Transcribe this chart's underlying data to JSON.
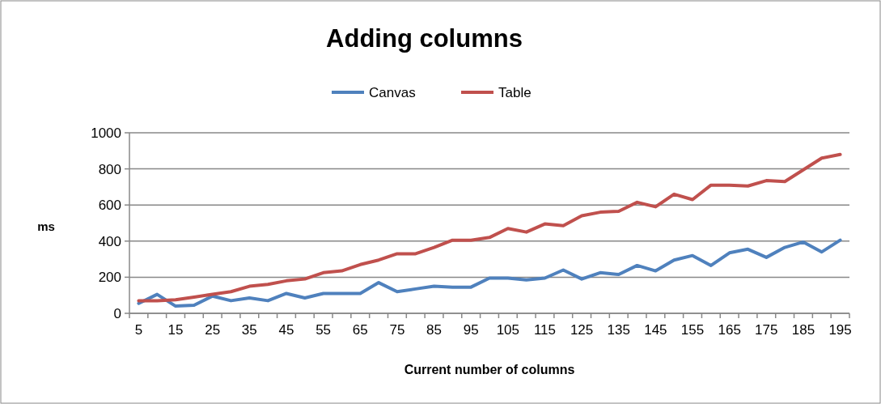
{
  "chart_data": {
    "type": "line",
    "title": "Adding columns",
    "xlabel": "Current number of columns",
    "ylabel": "ms",
    "categories": [
      "5",
      null,
      "15",
      null,
      "25",
      null,
      "35",
      null,
      "45",
      null,
      "55",
      null,
      "65",
      null,
      "75",
      null,
      "85",
      null,
      "95",
      null,
      "105",
      null,
      "115",
      null,
      "125",
      null,
      "135",
      null,
      "145",
      null,
      "155",
      null,
      "165",
      null,
      "175",
      null,
      "185",
      null,
      "195"
    ],
    "series": [
      {
        "name": "Canvas",
        "color": "#4f81bd",
        "values": [
          55,
          105,
          40,
          45,
          95,
          70,
          85,
          70,
          110,
          85,
          110,
          110,
          110,
          170,
          120,
          135,
          150,
          145,
          145,
          195,
          195,
          185,
          195,
          240,
          190,
          225,
          215,
          265,
          235,
          295,
          320,
          265,
          335,
          355,
          310,
          365,
          395,
          340,
          405
        ]
      },
      {
        "name": "Table",
        "color": "#c0504d",
        "values": [
          70,
          70,
          75,
          90,
          105,
          120,
          150,
          160,
          180,
          190,
          225,
          235,
          270,
          295,
          330,
          330,
          365,
          405,
          405,
          420,
          470,
          450,
          495,
          485,
          540,
          560,
          565,
          615,
          590,
          660,
          630,
          710,
          710,
          705,
          735,
          730,
          795,
          860,
          880
        ]
      }
    ],
    "ylim": [
      0,
      1000
    ],
    "yticks": [
      0,
      200,
      400,
      600,
      800,
      1000
    ],
    "grid": "y",
    "legend": "top",
    "marker": "none",
    "line_style": "solid"
  }
}
